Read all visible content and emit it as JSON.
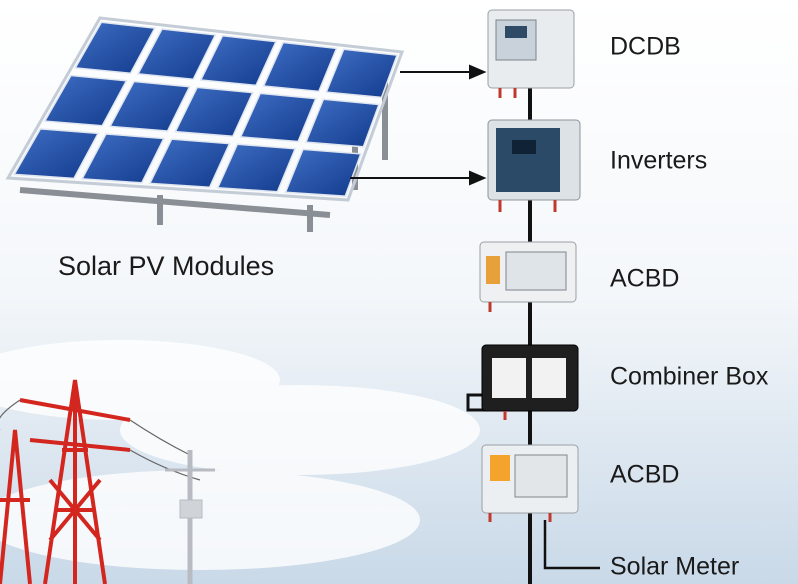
{
  "modules": {
    "label": "Solar PV Modules"
  },
  "components": [
    {
      "label": "DCDB"
    },
    {
      "label": "Inverters"
    },
    {
      "label": "ACBD"
    },
    {
      "label": "Combiner Box"
    },
    {
      "label": "ACBD"
    },
    {
      "label": "Solar Meter"
    }
  ]
}
